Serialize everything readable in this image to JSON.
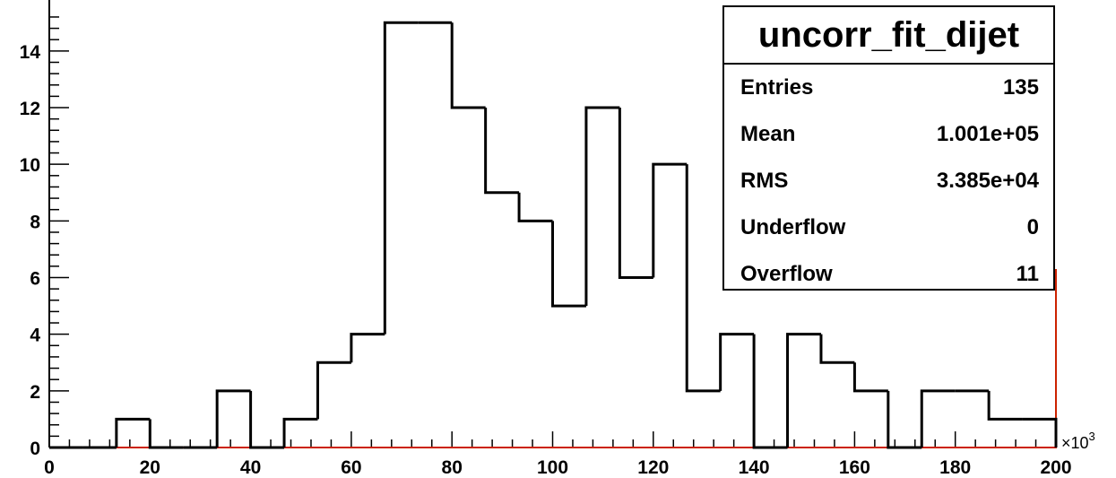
{
  "chart_data": {
    "type": "bar",
    "histtype": "step",
    "title": "",
    "xlabel": "",
    "ylabel": "",
    "xlim": [
      0,
      200
    ],
    "ylim": [
      0,
      15.8
    ],
    "x_exponent_label": "×10",
    "x_exponent_power": "3",
    "xticks": [
      "0",
      "20",
      "40",
      "60",
      "80",
      "100",
      "120",
      "140",
      "160",
      "180",
      "200"
    ],
    "yticks": [
      "0",
      "2",
      "4",
      "6",
      "8",
      "10",
      "12",
      "14"
    ],
    "bin_edges": [
      0,
      6.667,
      13.333,
      20,
      26.667,
      33.333,
      40,
      46.667,
      53.333,
      60,
      66.667,
      73.333,
      80,
      86.667,
      93.333,
      100,
      106.667,
      113.333,
      120,
      126.667,
      133.333,
      140,
      146.667,
      153.333,
      160,
      166.667,
      173.333,
      180,
      186.667,
      193.333,
      200
    ],
    "values": [
      0,
      0,
      1,
      0,
      0,
      2,
      0,
      1,
      3,
      4,
      15,
      15,
      12,
      9,
      8,
      5,
      12,
      6,
      10,
      2,
      4,
      0,
      4,
      3,
      2,
      0,
      2,
      2,
      1,
      1
    ],
    "series": [
      {
        "name": "uncorr_fit_dijet",
        "color": "#000000"
      }
    ],
    "fit_color": "#cc2200",
    "grid": false,
    "legend": "top-right",
    "stats": {
      "title": "uncorr_fit_dijet",
      "rows": [
        {
          "label": "Entries",
          "value": "135"
        },
        {
          "label": "Mean",
          "value": "1.001e+05"
        },
        {
          "label": "RMS",
          "value": "3.385e+04"
        },
        {
          "label": "Underflow",
          "value": "0"
        },
        {
          "label": "Overflow",
          "value": "11"
        }
      ]
    }
  }
}
